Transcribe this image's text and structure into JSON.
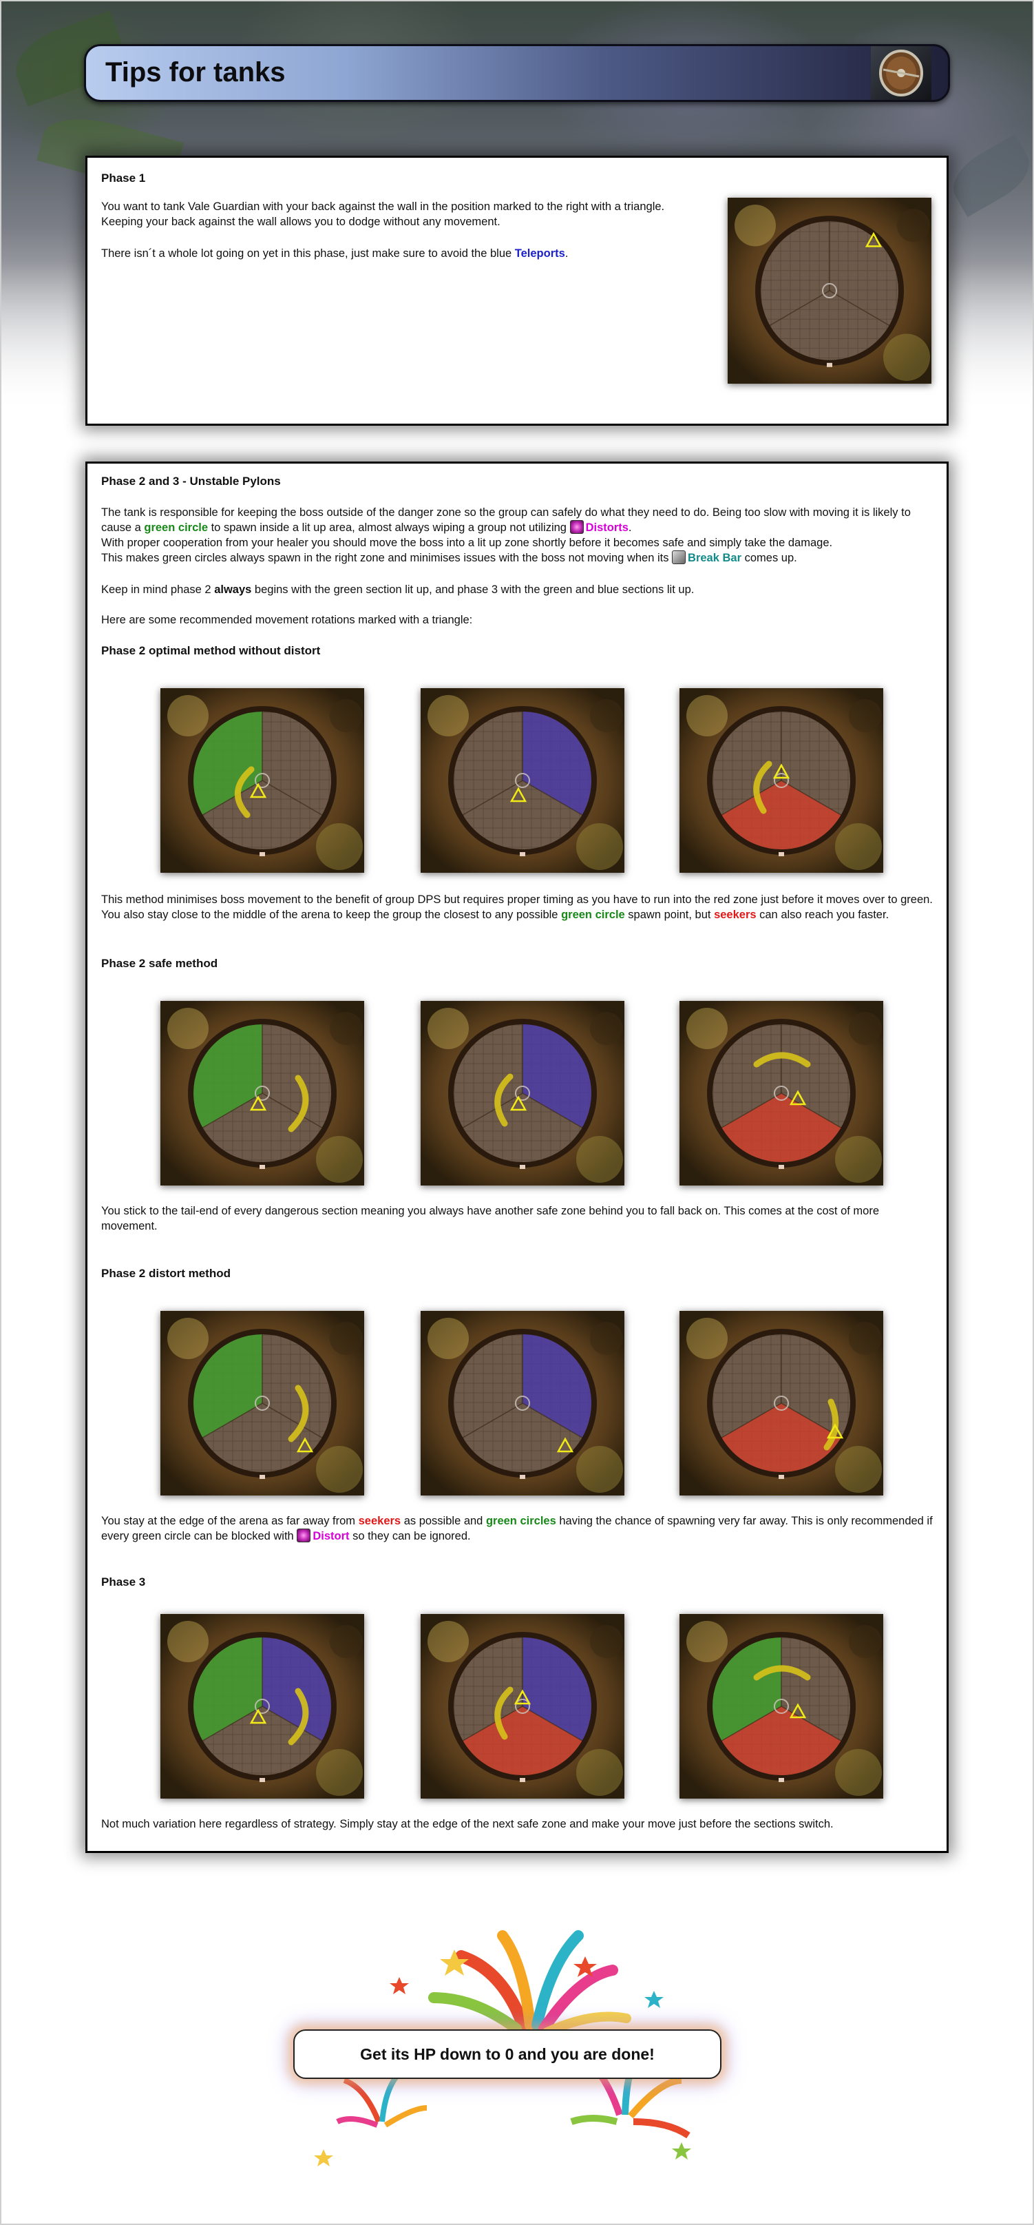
{
  "page": {
    "title": "Tips for tanks"
  },
  "phase1": {
    "heading": "Phase 1",
    "p1": "You want to tank Vale Guardian with your back against the wall in the position marked to the right with a triangle. Keeping your back against the wall allows you to dodge without any movement.",
    "p2_before": "There isn´t a whole lot going on yet in this phase, just make sure to avoid the blue ",
    "p2_link": "Teleports",
    "p2_after": "."
  },
  "phase23": {
    "heading": "Phase 2 and 3 - Unstable Pylons",
    "intro1_a": "The tank is responsible for keeping the boss outside of the danger zone so the group can safely do what they need to do. Being too slow with moving it is likely to cause a ",
    "intro1_green": "green circle",
    "intro1_b": " to spawn inside a lit up area, almost always wiping a group not utilizing ",
    "intro1_distort": "Distorts",
    "intro1_c": ".",
    "intro2": "With proper cooperation from your healer you should move the boss into a lit up zone shortly before it becomes safe and simply take the damage.",
    "intro3_a": "This makes green circles always spawn in the right zone and minimises issues with the boss not moving when its ",
    "intro3_breakbar": "Break Bar",
    "intro3_b": " comes up.",
    "keep_a": "Keep in mind phase 2 ",
    "keep_bold": "always",
    "keep_b": " begins with the green section lit up, and phase 3 with the green and blue sections lit up.",
    "recommend": "Here are some recommended movement rotations marked with a triangle:",
    "optimal_heading": "Phase 2 optimal method without distort",
    "optimal_text_a": "This method minimises boss movement to the benefit of group DPS but requires proper timing as you have to run into the red zone just before it moves over to green. You also stay close to the middle of the arena to keep the group the closest to any possible ",
    "optimal_green": "green circle",
    "optimal_text_b": " spawn point, but ",
    "optimal_red": "seekers",
    "optimal_text_c": " can also reach you faster.",
    "safe_heading": "Phase 2 safe method",
    "safe_text": "You stick to the tail-end of every dangerous section meaning you always have another safe zone behind you to fall back on. This comes at the cost of more movement.",
    "distort_heading": "Phase 2 distort method",
    "distort_text_a": "You stay at the edge of the arena as far away from ",
    "distort_red": "seekers",
    "distort_text_b": " as possible and ",
    "distort_green": "green circles",
    "distort_text_c": " having the chance of spawning very far away. This is only recommended if every green circle can be blocked with ",
    "distort_skill": "Distort",
    "distort_text_d": " so they can be ignored.",
    "phase3_heading": "Phase 3",
    "phase3_text": "Not much variation here regardless of strategy. Simply stay at the edge of the next safe zone and make your move just before the sections switch."
  },
  "finale": {
    "text": "Get its HP down to 0 and you are done!"
  },
  "colors": {
    "green_zone": "#3fa02c",
    "blue_zone": "#4a3aa8",
    "red_zone": "#d0402c",
    "arrow": "#d6c21a",
    "triangle": "#f2ea17"
  },
  "arenas": [
    {
      "id": "p1",
      "lit": [],
      "arrow": "none",
      "marker": "edge-right-top"
    },
    {
      "id": "opt1",
      "lit": [
        "green"
      ],
      "arrow": "ccw-left",
      "marker": "center"
    },
    {
      "id": "opt2",
      "lit": [
        "blue"
      ],
      "arrow": "none",
      "marker": "center-low"
    },
    {
      "id": "opt3",
      "lit": [
        "red"
      ],
      "arrow": "left-up",
      "marker": "center-up"
    },
    {
      "id": "safe1",
      "lit": [
        "green"
      ],
      "arrow": "right-down",
      "marker": "center"
    },
    {
      "id": "safe2",
      "lit": [
        "blue"
      ],
      "arrow": "left-up",
      "marker": "center"
    },
    {
      "id": "safe3",
      "lit": [
        "red"
      ],
      "arrow": "top-right",
      "marker": "center-right"
    },
    {
      "id": "dis1",
      "lit": [
        "green"
      ],
      "arrow": "right-down",
      "marker": "edge-lower-right"
    },
    {
      "id": "dis2",
      "lit": [
        "blue"
      ],
      "arrow": "none",
      "marker": "edge-lower-right"
    },
    {
      "id": "dis3",
      "lit": [
        "red"
      ],
      "arrow": "right-up",
      "marker": "edge-right"
    },
    {
      "id": "p3a",
      "lit": [
        "green",
        "blue"
      ],
      "arrow": "right-down",
      "marker": "center"
    },
    {
      "id": "p3b",
      "lit": [
        "blue",
        "red"
      ],
      "arrow": "left-up",
      "marker": "center-up"
    },
    {
      "id": "p3c",
      "lit": [
        "green",
        "red"
      ],
      "arrow": "top-right",
      "marker": "center-right"
    }
  ]
}
